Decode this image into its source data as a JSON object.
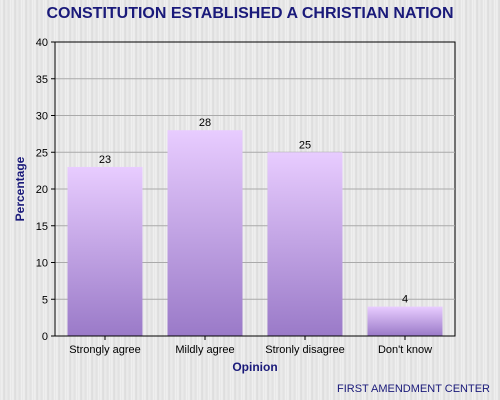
{
  "chart_data": {
    "type": "bar",
    "title": "CONSTITUTION ESTABLISHED A CHRISTIAN NATION",
    "xlabel": "Opinion",
    "ylabel": "Percentage",
    "categories": [
      "Strongly agree",
      "Mildly agree",
      "Stronly disagree",
      "Don't know"
    ],
    "values": [
      23,
      28,
      25,
      4
    ],
    "ylim": [
      0,
      40
    ],
    "yticks": [
      0,
      5,
      10,
      15,
      20,
      25,
      30,
      35,
      40
    ],
    "grid": true,
    "legend": "none",
    "bar_color_top": "#e8ccff",
    "bar_color_bottom": "#9a7ac8",
    "text_color": "#1a1a7a"
  },
  "footer": {
    "source": "FIRST AMENDMENT CENTER"
  }
}
